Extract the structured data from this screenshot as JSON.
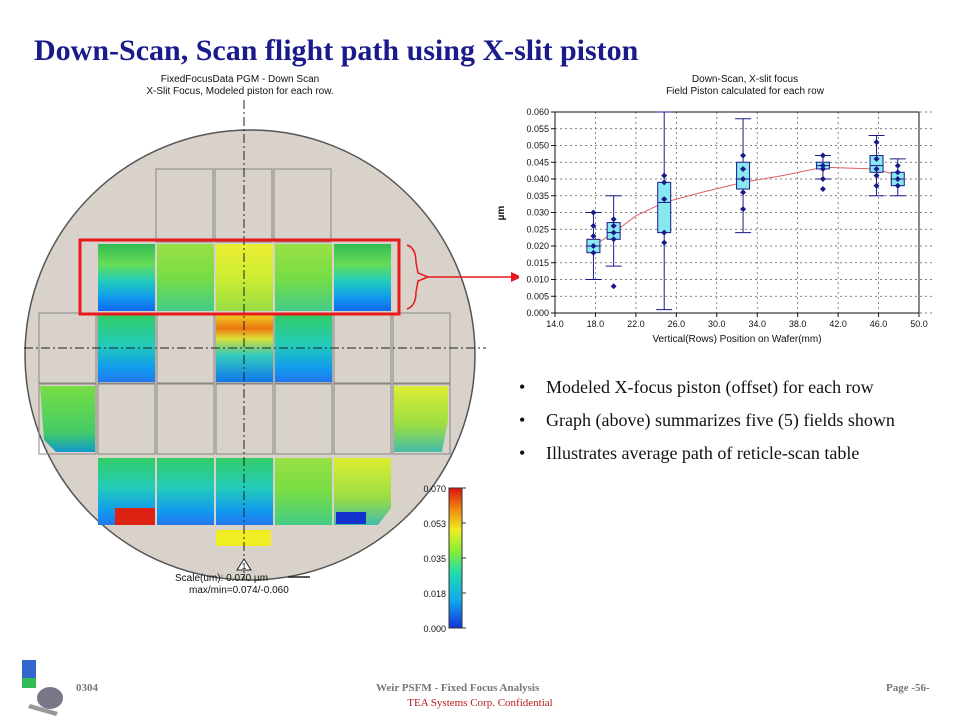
{
  "slide": {
    "title": "Down-Scan, Scan flight path using X-slit piston",
    "wafer_caption": [
      "FixedFocusData PGM - Down Scan",
      "X-Slit Focus, Modeled piston for each row."
    ],
    "scale_label": "Scale(um): 0.070 µm",
    "maxmin_label": "max/min=0.074/-0.060",
    "wafer_marker": "1",
    "colorbar_ticks": [
      "0.070",
      "0.053",
      "0.035",
      "0.018",
      "0.000"
    ],
    "bullets": [
      "Modeled X-focus piston (offset) for each row",
      "Graph (above) summarizes five (5) fields shown",
      "Illustrates average path of reticle-scan table"
    ],
    "footer": {
      "left": "0304",
      "center": "Weir PSFM - Fixed Focus Analysis",
      "right": "Page -56-",
      "confidential": "TEA Systems Corp. Confidential"
    },
    "colors": {
      "title": "#1a1a8a",
      "highlight": "#e8191a",
      "box": "#88e8f0",
      "whisker": "#1a1a8a",
      "trend": "#e06060",
      "confidential": "#b71c1c"
    }
  },
  "chart_data": {
    "type": "box",
    "title": "Down-Scan, X-slit focus",
    "subtitle": "Field Piston calculated for each row",
    "xlabel": "Vertical(Rows) Position on Wafer(mm)",
    "ylabel": "µm",
    "xlim": [
      14.0,
      50.0
    ],
    "ylim": [
      0.0,
      0.06
    ],
    "xticks": [
      "14.0",
      "18.0",
      "22.0",
      "26.0",
      "30.0",
      "34.0",
      "38.0",
      "42.0",
      "46.0",
      "50.0"
    ],
    "yticks": [
      "0.000",
      "0.005",
      "0.010",
      "0.015",
      "0.020",
      "0.025",
      "0.030",
      "0.035",
      "0.040",
      "0.045",
      "0.050",
      "0.055",
      "0.060"
    ],
    "grid": true,
    "boxes": [
      {
        "x": 17.8,
        "min": 0.01,
        "q1": 0.018,
        "median": 0.02,
        "q3": 0.022,
        "max": 0.03,
        "points": [
          0.03,
          0.026,
          0.023,
          0.02,
          0.018
        ]
      },
      {
        "x": 19.8,
        "min": 0.014,
        "q1": 0.022,
        "median": 0.024,
        "q3": 0.027,
        "max": 0.035,
        "points": [
          0.028,
          0.026,
          0.024,
          0.022,
          0.008
        ]
      },
      {
        "x": 24.8,
        "min": 0.001,
        "q1": 0.024,
        "median": 0.033,
        "q3": 0.039,
        "max": 0.06,
        "points": [
          0.041,
          0.039,
          0.034,
          0.024,
          0.021
        ]
      },
      {
        "x": 32.6,
        "min": 0.024,
        "q1": 0.037,
        "median": 0.04,
        "q3": 0.045,
        "max": 0.058,
        "points": [
          0.047,
          0.043,
          0.04,
          0.036,
          0.031
        ]
      },
      {
        "x": 40.5,
        "min": 0.04,
        "q1": 0.043,
        "median": 0.044,
        "q3": 0.045,
        "max": 0.047,
        "points": [
          0.047,
          0.044,
          0.043,
          0.04,
          0.037
        ]
      },
      {
        "x": 45.8,
        "min": 0.035,
        "q1": 0.042,
        "median": 0.044,
        "q3": 0.047,
        "max": 0.053,
        "points": [
          0.051,
          0.046,
          0.043,
          0.041,
          0.038
        ]
      },
      {
        "x": 47.9,
        "min": 0.035,
        "q1": 0.038,
        "median": 0.04,
        "q3": 0.042,
        "max": 0.046,
        "points": [
          0.044,
          0.042,
          0.04,
          0.038
        ]
      }
    ],
    "trend": {
      "x": [
        17.8,
        19.8,
        22.0,
        24.8,
        28.5,
        32.6,
        36.5,
        40.5,
        43.5,
        45.8,
        47.9
      ],
      "y": [
        0.02,
        0.024,
        0.029,
        0.033,
        0.036,
        0.039,
        0.041,
        0.0435,
        0.0432,
        0.043,
        0.041
      ]
    }
  }
}
